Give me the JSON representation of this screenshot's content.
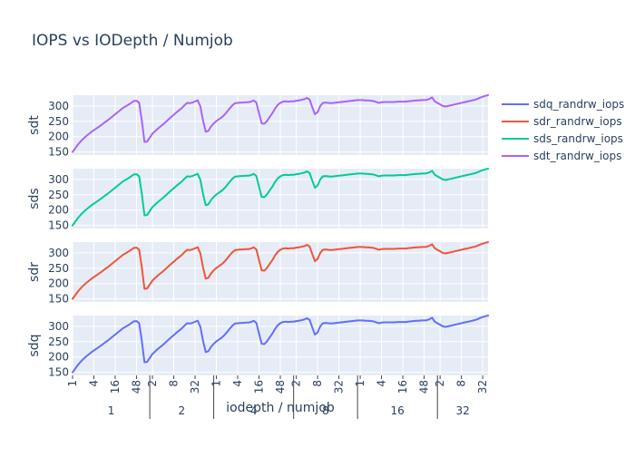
{
  "chart_data": {
    "type": "line",
    "title": "IOPS vs IODepth / Numjob",
    "xlabel": "iodepth / numjob",
    "colors": {
      "sdq": "#636efa",
      "sdr": "#ef553b",
      "sds": "#00cc96",
      "sdt": "#ab63fa",
      "plot_bg": "#e5ecf6",
      "grid": "#ffffff"
    },
    "x": [
      0,
      0.5,
      1,
      1.5,
      2,
      2.5,
      3,
      3.5,
      4,
      4.5,
      5,
      5.5,
      6,
      6.5,
      7,
      7.5,
      8,
      8.5,
      9,
      9.5,
      10,
      10.5,
      11,
      11.5,
      12,
      12.5,
      13,
      13.5,
      14,
      14.5,
      15,
      15.5,
      16,
      16.5,
      17,
      17.5,
      18,
      18.5,
      19,
      19.5,
      20,
      20.5,
      21,
      21.5,
      22,
      22.5,
      23,
      23.5,
      24,
      24.5,
      25,
      25.5,
      26,
      26.5,
      27,
      27.5,
      28,
      28.5,
      29,
      29.5,
      30,
      30.5,
      31,
      31.5,
      32,
      32.5,
      33,
      33.5,
      34,
      34.5,
      35,
      35.5,
      36,
      36.5,
      37,
      37.5,
      38,
      38.5,
      39,
      39.5,
      40,
      40.5,
      41,
      41.5,
      42,
      42.5,
      43,
      43.5,
      44,
      44.5,
      45,
      45.5,
      46,
      46.5,
      47,
      47.5,
      48,
      48.5,
      49,
      49.5,
      50,
      50.5,
      51,
      51.5,
      52,
      52.5,
      53,
      53.5,
      54,
      54.5,
      55,
      55.5,
      56,
      56.5,
      57,
      57.5,
      58,
      58.5,
      59,
      59.5,
      60,
      60.5,
      61,
      61.5,
      62,
      62.5,
      63,
      63.5,
      64,
      64.5,
      65,
      65.5,
      66,
      66.5,
      67,
      67.5,
      68,
      68.5,
      69,
      69.5,
      70,
      70.5,
      71,
      71.5,
      72,
      72.5,
      73,
      73.5,
      74,
      74.5,
      75,
      75.5,
      76,
      76.5,
      77,
      77.5,
      78
    ],
    "x_ticks": [
      {
        "label": "1",
        "x": 0
      },
      {
        "label": "4",
        "x": 4
      },
      {
        "label": "16",
        "x": 8
      },
      {
        "label": "48",
        "x": 12
      },
      {
        "label": "2",
        "x": 15
      },
      {
        "label": "8",
        "x": 19
      },
      {
        "label": "32",
        "x": 23
      },
      {
        "label": "1",
        "x": 27
      },
      {
        "label": "4",
        "x": 31
      },
      {
        "label": "16",
        "x": 35
      },
      {
        "label": "48",
        "x": 39
      },
      {
        "label": "2",
        "x": 42
      },
      {
        "label": "8",
        "x": 46
      },
      {
        "label": "32",
        "x": 50
      },
      {
        "label": "1",
        "x": 54
      },
      {
        "label": "4",
        "x": 58
      },
      {
        "label": "16",
        "x": 62
      },
      {
        "label": "48",
        "x": 66
      },
      {
        "label": "2",
        "x": 69
      },
      {
        "label": "8",
        "x": 73
      },
      {
        "label": "32",
        "x": 77
      }
    ],
    "groups": [
      {
        "label": "1",
        "from": 0,
        "to": 14
      },
      {
        "label": "2",
        "from": 15,
        "to": 26
      },
      {
        "label": "4",
        "from": 27,
        "to": 41
      },
      {
        "label": "8",
        "from": 42,
        "to": 53
      },
      {
        "label": "16",
        "from": 54,
        "to": 68
      },
      {
        "label": "32",
        "from": 69,
        "to": 78
      }
    ],
    "xlim": [
      0,
      78
    ],
    "ylim": [
      140,
      335
    ],
    "y_ticks": [
      150,
      200,
      250,
      300
    ],
    "grid": true,
    "legend_position": "right",
    "series": [
      {
        "name": "sdt_randrw_iops",
        "panel_label": "sdt",
        "color_key": "sdt",
        "values": [
          150,
          162,
          174,
          184,
          193,
          201,
          208,
          215,
          221,
          227,
          233,
          239,
          246,
          252,
          259,
          266,
          273,
          280,
          287,
          294,
          299,
          304,
          310,
          316,
          317,
          310,
          253,
          183,
          184,
          197,
          210,
          218,
          226,
          233,
          240,
          248,
          256,
          264,
          271,
          279,
          286,
          293,
          302,
          310,
          309,
          311,
          315,
          318,
          298,
          252,
          216,
          219,
          233,
          243,
          251,
          257,
          263,
          271,
          281,
          292,
          302,
          309,
          310,
          311,
          311,
          312,
          312,
          314,
          318,
          311,
          277,
          243,
          242,
          251,
          264,
          276,
          291,
          303,
          310,
          314,
          315,
          314,
          315,
          315,
          317,
          318,
          320,
          322,
          326,
          321,
          296,
          273,
          280,
          300,
          310,
          311,
          310,
          309,
          310,
          311,
          312,
          313,
          314,
          315,
          316,
          317,
          318,
          319,
          319,
          319,
          318,
          318,
          317,
          316,
          313,
          310,
          312,
          313,
          313,
          313,
          313,
          313,
          314,
          314,
          314,
          314,
          315,
          316,
          317,
          318,
          318,
          319,
          319,
          320,
          323,
          328,
          315,
          310,
          305,
          300,
          298,
          300,
          302,
          304,
          306,
          308,
          310,
          312,
          314,
          316,
          318,
          320,
          323,
          327,
          330,
          333,
          335
        ]
      },
      {
        "name": "sds_randrw_iops",
        "panel_label": "sds",
        "color_key": "sds",
        "values": [
          150,
          162,
          174,
          184,
          193,
          201,
          208,
          215,
          221,
          227,
          233,
          239,
          246,
          252,
          259,
          266,
          273,
          280,
          287,
          294,
          299,
          304,
          310,
          316,
          317,
          310,
          253,
          183,
          184,
          197,
          210,
          218,
          226,
          233,
          240,
          248,
          256,
          264,
          271,
          279,
          286,
          293,
          302,
          310,
          309,
          311,
          315,
          318,
          298,
          252,
          216,
          219,
          233,
          243,
          251,
          257,
          263,
          271,
          281,
          292,
          302,
          309,
          310,
          311,
          311,
          312,
          312,
          314,
          318,
          311,
          277,
          243,
          242,
          251,
          264,
          276,
          291,
          303,
          310,
          314,
          315,
          314,
          315,
          315,
          317,
          318,
          320,
          322,
          326,
          321,
          296,
          273,
          280,
          300,
          310,
          311,
          310,
          309,
          310,
          311,
          312,
          313,
          314,
          315,
          316,
          317,
          318,
          319,
          319,
          319,
          318,
          318,
          317,
          316,
          313,
          310,
          312,
          313,
          313,
          313,
          313,
          313,
          314,
          314,
          314,
          314,
          315,
          316,
          317,
          318,
          318,
          319,
          319,
          320,
          323,
          328,
          315,
          310,
          305,
          300,
          298,
          300,
          302,
          304,
          306,
          308,
          310,
          312,
          314,
          316,
          318,
          320,
          323,
          327,
          330,
          333,
          335
        ]
      },
      {
        "name": "sdr_randrw_iops",
        "panel_label": "sdr",
        "color_key": "sdr",
        "values": [
          150,
          162,
          174,
          184,
          193,
          201,
          208,
          215,
          221,
          227,
          233,
          239,
          246,
          252,
          259,
          266,
          273,
          280,
          287,
          294,
          299,
          304,
          310,
          316,
          317,
          310,
          253,
          183,
          184,
          197,
          210,
          218,
          226,
          233,
          240,
          248,
          256,
          264,
          271,
          279,
          286,
          293,
          302,
          310,
          309,
          311,
          315,
          318,
          298,
          252,
          216,
          219,
          233,
          243,
          251,
          257,
          263,
          271,
          281,
          292,
          302,
          309,
          310,
          311,
          311,
          312,
          312,
          314,
          318,
          311,
          277,
          243,
          242,
          251,
          264,
          276,
          291,
          303,
          310,
          314,
          315,
          314,
          315,
          315,
          317,
          318,
          320,
          322,
          326,
          321,
          296,
          273,
          280,
          300,
          310,
          311,
          310,
          309,
          310,
          311,
          312,
          313,
          314,
          315,
          316,
          317,
          318,
          319,
          319,
          319,
          318,
          318,
          317,
          316,
          313,
          310,
          312,
          313,
          313,
          313,
          313,
          313,
          314,
          314,
          314,
          314,
          315,
          316,
          317,
          318,
          318,
          319,
          319,
          320,
          323,
          328,
          315,
          310,
          305,
          300,
          298,
          300,
          302,
          304,
          306,
          308,
          310,
          312,
          314,
          316,
          318,
          320,
          323,
          327,
          330,
          333,
          335
        ]
      },
      {
        "name": "sdq_randrw_iops",
        "panel_label": "sdq",
        "color_key": "sdq",
        "values": [
          150,
          162,
          174,
          184,
          193,
          201,
          208,
          215,
          221,
          227,
          233,
          239,
          246,
          252,
          259,
          266,
          273,
          280,
          287,
          294,
          299,
          304,
          310,
          316,
          317,
          310,
          253,
          183,
          184,
          197,
          210,
          218,
          226,
          233,
          240,
          248,
          256,
          264,
          271,
          279,
          286,
          293,
          302,
          310,
          309,
          311,
          315,
          318,
          298,
          252,
          216,
          219,
          233,
          243,
          251,
          257,
          263,
          271,
          281,
          292,
          302,
          309,
          310,
          311,
          311,
          312,
          312,
          314,
          318,
          311,
          277,
          243,
          242,
          251,
          264,
          276,
          291,
          303,
          310,
          314,
          315,
          314,
          315,
          315,
          317,
          318,
          320,
          322,
          326,
          321,
          296,
          273,
          280,
          300,
          310,
          311,
          310,
          309,
          310,
          311,
          312,
          313,
          314,
          315,
          316,
          317,
          318,
          319,
          319,
          319,
          318,
          318,
          317,
          316,
          313,
          310,
          312,
          313,
          313,
          313,
          313,
          313,
          314,
          314,
          314,
          314,
          315,
          316,
          317,
          318,
          318,
          319,
          319,
          320,
          323,
          328,
          315,
          310,
          305,
          300,
          298,
          300,
          302,
          304,
          306,
          308,
          310,
          312,
          314,
          316,
          318,
          320,
          323,
          327,
          330,
          333,
          335
        ]
      }
    ],
    "legend": [
      {
        "label": "sdq_randrw_iops",
        "color_key": "sdq"
      },
      {
        "label": "sdr_randrw_iops",
        "color_key": "sdr"
      },
      {
        "label": "sds_randrw_iops",
        "color_key": "sds"
      },
      {
        "label": "sdt_randrw_iops",
        "color_key": "sdt"
      }
    ]
  }
}
